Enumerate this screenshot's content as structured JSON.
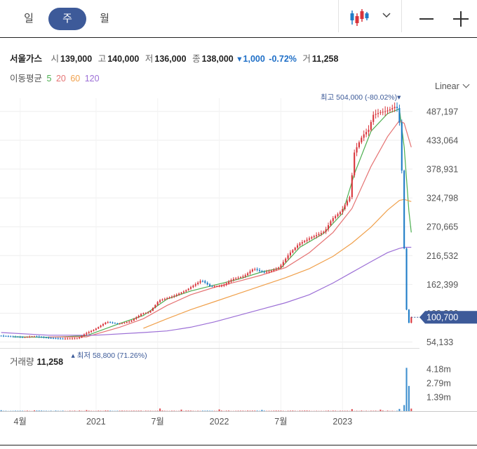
{
  "toolbar": {
    "tabs": [
      {
        "label": "일",
        "active": false
      },
      {
        "label": "주",
        "active": true
      },
      {
        "label": "월",
        "active": false
      }
    ],
    "chart_type_icon": "candlestick-icon",
    "dropdown_icon": "chevron-down-icon",
    "zoom_out_icon": "minus-icon",
    "zoom_in_icon": "plus-icon"
  },
  "quote": {
    "name": "서울가스",
    "open_label": "시",
    "open": "139,000",
    "high_label": "고",
    "high": "140,000",
    "low_label": "저",
    "low": "136,000",
    "close_label": "종",
    "close": "138,000",
    "change": "1,000",
    "change_pct": "-0.72%",
    "volume_label": "거",
    "volume": "11,258"
  },
  "ma_legend": {
    "label": "이동평균",
    "periods": [
      "5",
      "20",
      "60",
      "120"
    ],
    "colors": [
      "#4caf50",
      "#e57373",
      "#f0a04b",
      "#9c6fd6"
    ]
  },
  "scale_mode": "Linear",
  "volume_panel": {
    "label": "거래량",
    "value": "11,258"
  },
  "colors": {
    "up": "#d9343b",
    "down": "#1f7cc7",
    "accent": "#3d5a99",
    "last_price_bg": "#3d5a99"
  },
  "chart_data": {
    "type": "candlestick",
    "title": "서울가스 주봉",
    "y_ticks": [
      "487,197",
      "433,064",
      "378,931",
      "324,798",
      "270,665",
      "216,532",
      "162,399",
      "108,266",
      "54,133"
    ],
    "y_tick_values": [
      487197,
      433064,
      378931,
      324798,
      270665,
      216532,
      162399,
      108266,
      54133
    ],
    "ylim": [
      43000,
      512000
    ],
    "x_ticks": [
      "4월",
      "2021",
      "7월",
      "2022",
      "7월",
      "2023"
    ],
    "x_tick_positions": [
      8,
      40,
      66,
      92,
      118,
      144
    ],
    "week_count": 174,
    "price_path": [
      [
        0,
        66000
      ],
      [
        10,
        63000
      ],
      [
        14,
        65000
      ],
      [
        20,
        62000
      ],
      [
        26,
        60500
      ],
      [
        33,
        61000
      ],
      [
        36,
        70000
      ],
      [
        40,
        78000
      ],
      [
        45,
        92000
      ],
      [
        50,
        88000
      ],
      [
        55,
        93000
      ],
      [
        60,
        108000
      ],
      [
        63,
        110000
      ],
      [
        67,
        132000
      ],
      [
        73,
        140000
      ],
      [
        78,
        150000
      ],
      [
        85,
        170000
      ],
      [
        89,
        158000
      ],
      [
        94,
        160000
      ],
      [
        98,
        172000
      ],
      [
        103,
        178000
      ],
      [
        107,
        192000
      ],
      [
        111,
        185000
      ],
      [
        114,
        187000
      ],
      [
        118,
        195000
      ],
      [
        122,
        220000
      ],
      [
        126,
        238000
      ],
      [
        131,
        250000
      ],
      [
        137,
        262000
      ],
      [
        140,
        285000
      ],
      [
        144,
        300000
      ],
      [
        148,
        330000
      ],
      [
        149,
        405000
      ],
      [
        151,
        425000
      ],
      [
        153,
        442000
      ],
      [
        156,
        455000
      ],
      [
        157,
        480000
      ],
      [
        160,
        485000
      ],
      [
        163,
        488000
      ],
      [
        165,
        492000
      ],
      [
        167,
        497000
      ],
      [
        168,
        490000
      ],
      [
        169,
        442000
      ],
      [
        170,
        310000
      ],
      [
        171,
        150000
      ],
      [
        172,
        80000
      ],
      [
        173,
        100700
      ]
    ],
    "ma": [
      {
        "name": "5",
        "color": "#4caf50",
        "points": [
          [
            5,
            64000
          ],
          [
            20,
            63000
          ],
          [
            36,
            66000
          ],
          [
            50,
            89000
          ],
          [
            60,
            104000
          ],
          [
            70,
            135000
          ],
          [
            80,
            150000
          ],
          [
            89,
            160000
          ],
          [
            100,
            172000
          ],
          [
            110,
            186000
          ],
          [
            118,
            193000
          ],
          [
            126,
            232000
          ],
          [
            136,
            258000
          ],
          [
            144,
            296000
          ],
          [
            149,
            370000
          ],
          [
            156,
            450000
          ],
          [
            163,
            483000
          ],
          [
            168,
            492000
          ],
          [
            170,
            420000
          ],
          [
            172,
            300000
          ],
          [
            173,
            260000
          ]
        ]
      },
      {
        "name": "20",
        "color": "#e57373",
        "points": [
          [
            20,
            63500
          ],
          [
            36,
            64000
          ],
          [
            50,
            82000
          ],
          [
            60,
            98000
          ],
          [
            70,
            123000
          ],
          [
            80,
            143000
          ],
          [
            90,
            157000
          ],
          [
            100,
            168000
          ],
          [
            110,
            180000
          ],
          [
            120,
            194000
          ],
          [
            130,
            222000
          ],
          [
            140,
            260000
          ],
          [
            148,
            305000
          ],
          [
            156,
            384000
          ],
          [
            163,
            440000
          ],
          [
            168,
            470000
          ],
          [
            170,
            465000
          ],
          [
            173,
            420000
          ]
        ]
      },
      {
        "name": "60",
        "color": "#f0a04b",
        "points": [
          [
            60,
            80000
          ],
          [
            70,
            98000
          ],
          [
            80,
            115000
          ],
          [
            90,
            130000
          ],
          [
            100,
            145000
          ],
          [
            110,
            160000
          ],
          [
            120,
            175000
          ],
          [
            130,
            192000
          ],
          [
            140,
            215000
          ],
          [
            148,
            240000
          ],
          [
            156,
            270000
          ],
          [
            163,
            302000
          ],
          [
            168,
            320000
          ],
          [
            170,
            322000
          ],
          [
            173,
            318000
          ]
        ]
      },
      {
        "name": "120",
        "color": "#9c6fd6",
        "points": [
          [
            0,
            72000
          ],
          [
            20,
            67000
          ],
          [
            40,
            67000
          ],
          [
            60,
            72000
          ],
          [
            70,
            75000
          ],
          [
            80,
            82000
          ],
          [
            90,
            92000
          ],
          [
            100,
            104000
          ],
          [
            110,
            116000
          ],
          [
            120,
            128000
          ],
          [
            130,
            143000
          ],
          [
            140,
            165000
          ],
          [
            148,
            185000
          ],
          [
            156,
            205000
          ],
          [
            163,
            222000
          ],
          [
            168,
            230000
          ],
          [
            170,
            232000
          ],
          [
            173,
            232000
          ]
        ]
      }
    ],
    "high_marker": {
      "label": "최고",
      "value": "504,000",
      "pct": "(-80.02%)",
      "week": 168,
      "price": 504000
    },
    "low_marker": {
      "label": "최저",
      "value": "58,800",
      "pct": "(71.26%)",
      "week": 26,
      "price": 58800
    },
    "last_price": {
      "value": "100,700",
      "price": 100700
    },
    "volume": {
      "y_ticks": [
        "4.18m",
        "2.79m",
        "1.39m"
      ],
      "y_tick_values": [
        4180000,
        2790000,
        1390000
      ],
      "ymax": 4600000,
      "spikes": [
        [
          0,
          90000
        ],
        [
          14,
          70000
        ],
        [
          36,
          100000
        ],
        [
          44,
          60000
        ],
        [
          67,
          260000
        ],
        [
          76,
          150000
        ],
        [
          92,
          170000
        ],
        [
          110,
          120000
        ],
        [
          148,
          200000
        ],
        [
          160,
          150000
        ],
        [
          168,
          220000
        ],
        [
          170,
          600000
        ],
        [
          171,
          4300000
        ],
        [
          172,
          2500000
        ],
        [
          173,
          250000
        ]
      ],
      "base": 30000
    }
  }
}
